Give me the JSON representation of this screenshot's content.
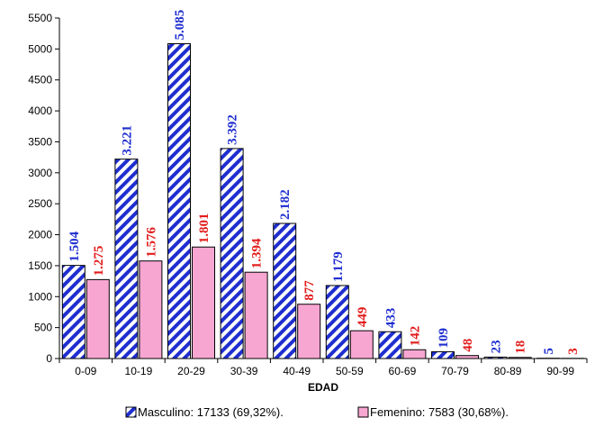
{
  "chart_data": {
    "type": "bar",
    "categories": [
      "0-09",
      "10-19",
      "20-29",
      "30-39",
      "40-49",
      "50-59",
      "60-69",
      "70-79",
      "80-89",
      "90-99"
    ],
    "series": [
      {
        "name": "Masculino",
        "values": [
          1504,
          3221,
          5085,
          3392,
          2182,
          1179,
          433,
          109,
          23,
          5
        ],
        "labels": [
          "1.504",
          "3.221",
          "5.085",
          "3.392",
          "2.182",
          "1.179",
          "433",
          "109",
          "23",
          "5"
        ],
        "fill": "#ffffff",
        "hatch": "#1f2ecf",
        "label_color": "#1f2ecf"
      },
      {
        "name": "Femenino",
        "values": [
          1275,
          1576,
          1801,
          1394,
          877,
          449,
          142,
          48,
          18,
          3
        ],
        "labels": [
          "1.275",
          "1.576",
          "1.801",
          "1.394",
          "877",
          "449",
          "142",
          "48",
          "18",
          "3"
        ],
        "fill": "#f7a6d2",
        "label_color": "#e21b1b"
      }
    ],
    "legend": [
      {
        "text": "Masculino: 17133 (69,32%)."
      },
      {
        "text": "Femenino: 7583 (30,68%)."
      }
    ],
    "xlabel": "EDAD",
    "ylabel": "",
    "ylim": [
      0,
      5500
    ],
    "yticks": [
      "0",
      "500",
      "1000",
      "1500",
      "2000",
      "2500",
      "3000",
      "3500",
      "4000",
      "4500",
      "5000",
      "5500"
    ],
    "grid": false,
    "plot_background": "#ffffff",
    "legend_position": "bottom"
  }
}
